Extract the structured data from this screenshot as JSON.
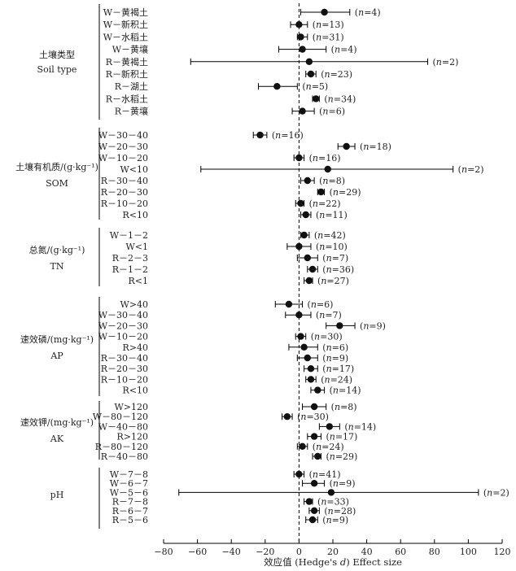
{
  "chart_data": {
    "type": "forest",
    "xlabel": "效应值 (Hedge's d)   Effect size",
    "xlim": [
      -80,
      120
    ],
    "x_ticks": [
      -80,
      -60,
      -40,
      -20,
      0,
      20,
      40,
      60,
      80,
      100,
      120
    ],
    "reference_line_x": 0,
    "groups": [
      {
        "label_cn": "土壤类型",
        "label_en": "Soil type",
        "rows": [
          {
            "label": "W－黄褐土",
            "mean": 15,
            "low": 1,
            "high": 30,
            "n": "4"
          },
          {
            "label": "W－新积土",
            "mean": 0,
            "low": -5,
            "high": 5,
            "n": "13"
          },
          {
            "label": "W－水稻土",
            "mean": 1,
            "low": -1,
            "high": 5,
            "n": "31"
          },
          {
            "label": "W－黄壤",
            "mean": 2,
            "low": -12,
            "high": 16,
            "n": "4"
          },
          {
            "label": "R－黄褐土",
            "mean": 6,
            "low": -64,
            "high": 76,
            "n": "2"
          },
          {
            "label": "R－新积土",
            "mean": 7,
            "low": 4,
            "high": 10,
            "n": "23"
          },
          {
            "label": "R－湖土",
            "mean": -13,
            "low": -24,
            "high": -1,
            "n": "5"
          },
          {
            "label": "R－水稻土",
            "mean": 10,
            "low": 8,
            "high": 12,
            "n": "34"
          },
          {
            "label": "R－黄壤",
            "mean": 2,
            "low": -4,
            "high": 9,
            "n": "6"
          }
        ]
      },
      {
        "label_cn": "土壤有机质/(g·kg⁻¹)",
        "label_en": "SOM",
        "rows": [
          {
            "label": "W－30－40",
            "mean": -23,
            "low": -27,
            "high": -19,
            "n": "16"
          },
          {
            "label": "W－20－30",
            "mean": 28,
            "low": 23,
            "high": 33,
            "n": "18"
          },
          {
            "label": "W－10－20",
            "mean": 0,
            "low": -3,
            "high": 3,
            "n": "16"
          },
          {
            "label": "W<10",
            "mean": 17,
            "low": -58,
            "high": 91,
            "n": "2"
          },
          {
            "label": "R－30－40",
            "mean": 5,
            "low": 1,
            "high": 9,
            "n": "8"
          },
          {
            "label": "R－20－30",
            "mean": 13,
            "low": 11,
            "high": 15,
            "n": "29"
          },
          {
            "label": "R－10－20",
            "mean": 1,
            "low": -2,
            "high": 3,
            "n": "22"
          },
          {
            "label": "R<10",
            "mean": 4,
            "low": 1,
            "high": 7,
            "n": "11"
          }
        ]
      },
      {
        "label_cn": "总氮/(g·kg⁻¹)",
        "label_en": "TN",
        "rows": [
          {
            "label": "W－1－2",
            "mean": 3,
            "low": 1,
            "high": 6,
            "n": "42"
          },
          {
            "label": "W<1",
            "mean": 0,
            "low": -7,
            "high": 7,
            "n": "10"
          },
          {
            "label": "R－2－3",
            "mean": 5,
            "low": -1,
            "high": 11,
            "n": "7"
          },
          {
            "label": "R－1－2",
            "mean": 8,
            "low": 5,
            "high": 11,
            "n": "36"
          },
          {
            "label": "R<1",
            "mean": 6,
            "low": 3,
            "high": 8,
            "n": "27"
          }
        ]
      },
      {
        "label_cn": "速效磷/(mg·kg⁻¹)",
        "label_en": "AP",
        "rows": [
          {
            "label": "W>40",
            "mean": -6,
            "low": -14,
            "high": 2,
            "n": "6"
          },
          {
            "label": "W－30－40",
            "mean": 0,
            "low": -8,
            "high": 7,
            "n": "7"
          },
          {
            "label": "W－20－30",
            "mean": 24,
            "low": 16,
            "high": 33,
            "n": "9"
          },
          {
            "label": "W－10－20",
            "mean": 1,
            "low": -2,
            "high": 4,
            "n": "30"
          },
          {
            "label": "R>40",
            "mean": 3,
            "low": -6,
            "high": 11,
            "n": "6"
          },
          {
            "label": "R－30－40",
            "mean": 5,
            "low": -1,
            "high": 11,
            "n": "9"
          },
          {
            "label": "R－20－30",
            "mean": 7,
            "low": 3,
            "high": 11,
            "n": "17"
          },
          {
            "label": "R－10－20",
            "mean": 7,
            "low": 4,
            "high": 10,
            "n": "24"
          },
          {
            "label": "R<10",
            "mean": 11,
            "low": 7,
            "high": 15,
            "n": "14"
          }
        ]
      },
      {
        "label_cn": "速效钾/(mg·kg⁻¹)",
        "label_en": "AK",
        "rows": [
          {
            "label": "W>120",
            "mean": 9,
            "low": 2,
            "high": 16,
            "n": "8"
          },
          {
            "label": "W－80－120",
            "mean": -7,
            "low": -10,
            "high": -4,
            "n": "30"
          },
          {
            "label": "W－40－80",
            "mean": 18,
            "low": 12,
            "high": 24,
            "n": "14"
          },
          {
            "label": "R>120",
            "mean": 9,
            "low": 5,
            "high": 13,
            "n": "17"
          },
          {
            "label": "R－80－120",
            "mean": 2,
            "low": -1,
            "high": 5,
            "n": "24"
          },
          {
            "label": "R－40－80",
            "mean": 11,
            "low": 8,
            "high": 13,
            "n": "29"
          }
        ]
      },
      {
        "label_cn": "",
        "label_en": "pH",
        "rows": [
          {
            "label": "W－7－8",
            "mean": 0,
            "low": -3,
            "high": 3,
            "n": "41"
          },
          {
            "label": "W－6－7",
            "mean": 9,
            "low": 2,
            "high": 15,
            "n": "9"
          },
          {
            "label": "W－5－6",
            "mean": 19,
            "low": -71,
            "high": 106,
            "n": "2"
          },
          {
            "label": "R－7－8",
            "mean": 6,
            "low": 3,
            "high": 8,
            "n": "33"
          },
          {
            "label": "R－6－7",
            "mean": 9,
            "low": 6,
            "high": 12,
            "n": "28"
          },
          {
            "label": "R－5－6",
            "mean": 8,
            "low": 4,
            "high": 11,
            "n": "9"
          }
        ]
      }
    ]
  }
}
